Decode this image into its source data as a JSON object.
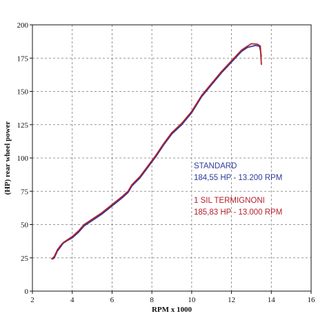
{
  "chart_data": {
    "type": "line",
    "xlabel": "RPM x 1000",
    "ylabel": "(HP) rear wheel power",
    "xlim": [
      2,
      16
    ],
    "ylim": [
      0,
      200
    ],
    "x_ticks": [
      2,
      4,
      6,
      8,
      10,
      12,
      14,
      16
    ],
    "y_ticks": [
      0,
      25,
      50,
      75,
      100,
      125,
      150,
      175,
      200
    ],
    "grid": true,
    "grid_style": "dashed",
    "legend_placement": "right-middle",
    "series": [
      {
        "name": "STANDARD",
        "summary": "184,55 HP - 13.200 RPM",
        "color": "#2b3a9a",
        "points": [
          [
            3.0,
            24
          ],
          [
            3.1,
            25
          ],
          [
            3.25,
            30
          ],
          [
            3.4,
            33
          ],
          [
            3.55,
            36
          ],
          [
            3.75,
            38
          ],
          [
            4.0,
            40
          ],
          [
            4.3,
            44
          ],
          [
            4.6,
            49
          ],
          [
            5.0,
            53
          ],
          [
            5.5,
            58
          ],
          [
            6.0,
            64
          ],
          [
            6.5,
            70
          ],
          [
            6.8,
            74
          ],
          [
            7.0,
            79
          ],
          [
            7.4,
            85
          ],
          [
            7.8,
            93
          ],
          [
            8.2,
            101
          ],
          [
            8.6,
            110
          ],
          [
            9.0,
            118
          ],
          [
            9.5,
            125
          ],
          [
            10.0,
            134
          ],
          [
            10.5,
            146
          ],
          [
            11.0,
            155
          ],
          [
            11.5,
            164
          ],
          [
            12.0,
            172
          ],
          [
            12.5,
            180
          ],
          [
            12.8,
            183
          ],
          [
            13.2,
            184.5
          ],
          [
            13.4,
            184
          ],
          [
            13.45,
            181
          ],
          [
            13.5,
            176
          ]
        ]
      },
      {
        "name": "1 SIL TERMIGNONI",
        "summary": "185,83 HP - 13.000 RPM",
        "color": "#b51f2a",
        "points": [
          [
            2.95,
            24
          ],
          [
            3.1,
            26
          ],
          [
            3.25,
            31
          ],
          [
            3.4,
            34
          ],
          [
            3.55,
            36.5
          ],
          [
            3.75,
            38.5
          ],
          [
            4.0,
            41
          ],
          [
            4.3,
            45
          ],
          [
            4.6,
            50
          ],
          [
            5.0,
            54
          ],
          [
            5.5,
            59
          ],
          [
            6.0,
            65
          ],
          [
            6.5,
            71
          ],
          [
            6.8,
            75
          ],
          [
            7.0,
            80
          ],
          [
            7.4,
            86
          ],
          [
            7.8,
            94
          ],
          [
            8.2,
            102
          ],
          [
            8.6,
            111
          ],
          [
            9.0,
            119
          ],
          [
            9.5,
            126
          ],
          [
            10.0,
            135
          ],
          [
            10.5,
            147
          ],
          [
            11.0,
            156
          ],
          [
            11.5,
            165
          ],
          [
            12.0,
            173
          ],
          [
            12.5,
            181
          ],
          [
            12.8,
            184
          ],
          [
            13.0,
            185.8
          ],
          [
            13.3,
            185.5
          ],
          [
            13.45,
            184
          ],
          [
            13.5,
            170
          ]
        ]
      }
    ]
  }
}
